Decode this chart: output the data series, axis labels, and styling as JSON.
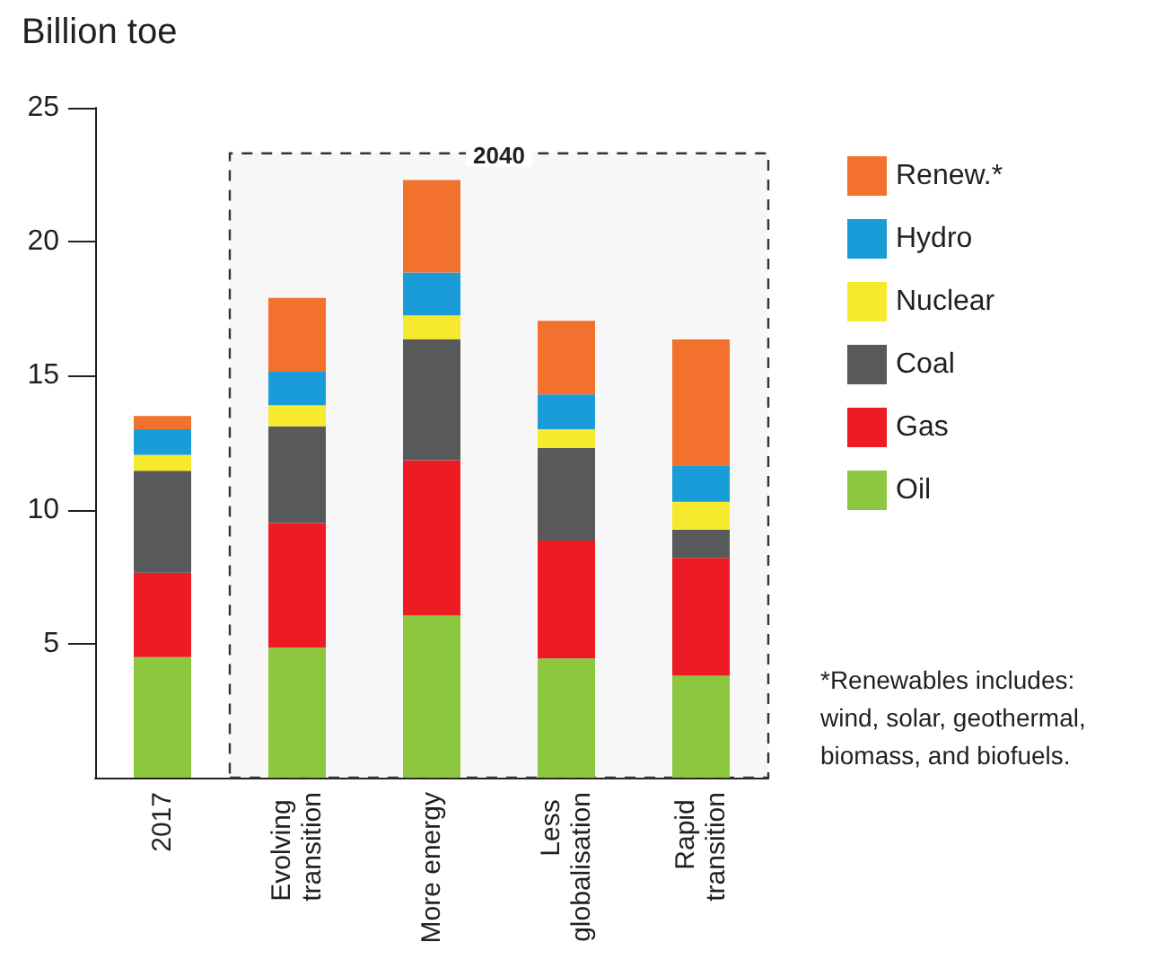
{
  "chart_data": {
    "type": "bar",
    "stacked": true,
    "ylabel": "Billion toe",
    "categories": [
      "2017",
      "Evolving transition",
      "More energy",
      "Less globalisation",
      "Rapid transition"
    ],
    "series": [
      {
        "name": "Oil",
        "color": "#8dc63f",
        "values": [
          4.5,
          4.85,
          6.05,
          4.45,
          3.8
        ]
      },
      {
        "name": "Gas",
        "color": "#ed1c24",
        "values": [
          3.15,
          4.65,
          5.8,
          4.4,
          4.4
        ]
      },
      {
        "name": "Coal",
        "color": "#58595b",
        "values": [
          3.8,
          3.6,
          4.5,
          3.45,
          1.05
        ]
      },
      {
        "name": "Nuclear",
        "color": "#f7e92d",
        "values": [
          0.6,
          0.8,
          0.9,
          0.7,
          1.05
        ]
      },
      {
        "name": "Hydro",
        "color": "#1a9cd8",
        "values": [
          0.95,
          1.25,
          1.6,
          1.3,
          1.35
        ]
      },
      {
        "name": "Renew.*",
        "color": "#f2712c",
        "values": [
          0.5,
          2.75,
          3.45,
          2.75,
          4.7
        ]
      }
    ],
    "ylim": [
      0,
      25
    ],
    "yticks": [
      5,
      10,
      15,
      20,
      25
    ],
    "grid": false,
    "legend": "right",
    "bands": [
      {
        "axis": "x",
        "from": "Evolving transition",
        "to": "Rapid transition",
        "label": "2040"
      }
    ],
    "annotations": [
      "*Renewables includes:\nwind, solar, geothermal,\nbiomass, and biofuels."
    ]
  }
}
